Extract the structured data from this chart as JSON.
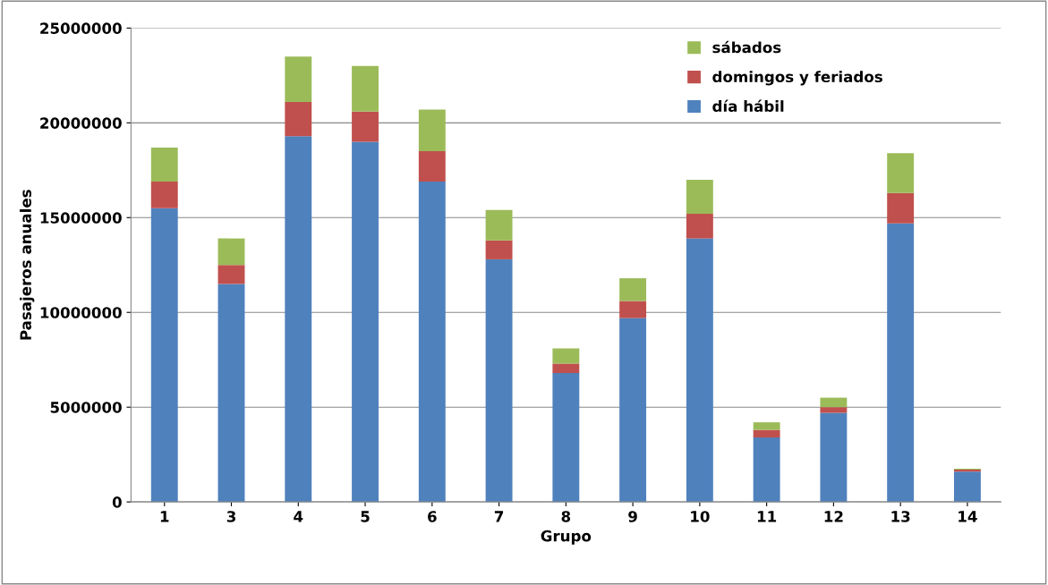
{
  "chart_data": {
    "type": "bar",
    "stacked": true,
    "xlabel": "Grupo",
    "ylabel": "Pasajeros anuales",
    "categories": [
      "1",
      "3",
      "4",
      "5",
      "6",
      "7",
      "8",
      "9",
      "10",
      "11",
      "12",
      "13",
      "14"
    ],
    "series": [
      {
        "name": "día hábil",
        "color": "#4f81bd",
        "values": [
          15500000,
          11500000,
          19300000,
          19000000,
          16900000,
          12800000,
          6800000,
          9700000,
          13900000,
          3400000,
          4700000,
          14700000,
          1600000
        ]
      },
      {
        "name": "domingos y feriados",
        "color": "#c0504d",
        "values": [
          1400000,
          1000000,
          1800000,
          1600000,
          1600000,
          1000000,
          500000,
          900000,
          1300000,
          400000,
          300000,
          1600000,
          100000
        ]
      },
      {
        "name": "sábados",
        "color": "#9bbb59",
        "values": [
          1800000,
          1400000,
          2400000,
          2400000,
          2200000,
          1600000,
          800000,
          1200000,
          1800000,
          400000,
          500000,
          2100000,
          50000
        ]
      }
    ],
    "ylim": [
      0,
      25000000
    ],
    "yticks": [
      0,
      5000000,
      10000000,
      15000000,
      20000000,
      25000000
    ],
    "grid": "y",
    "legend": "top right"
  }
}
